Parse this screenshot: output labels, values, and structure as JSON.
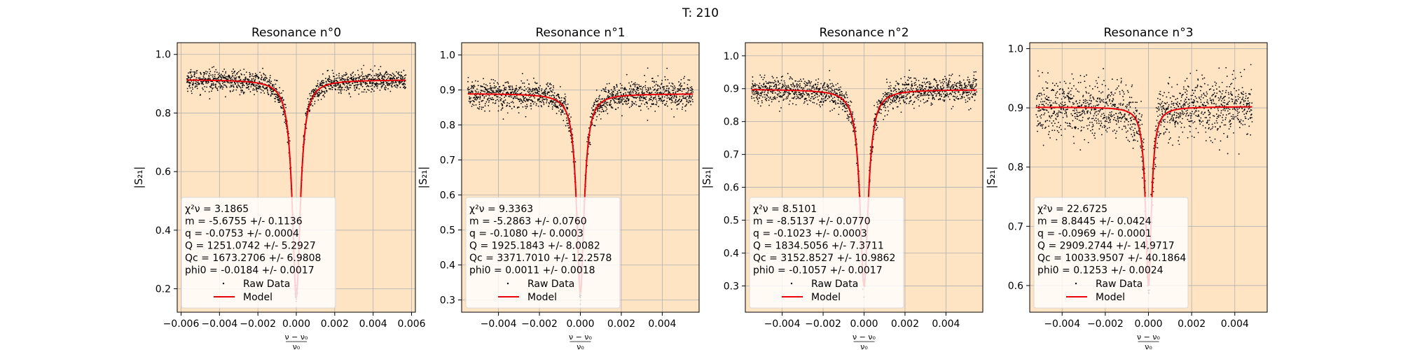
{
  "figure": {
    "title": "T: 210"
  },
  "colors": {
    "panel_bg": "#ffe4c4",
    "raw": "#000000",
    "model": "#e8000b",
    "grid": "#b0b0b0"
  },
  "chart_data": [
    {
      "type": "scatter",
      "title": "Resonance n°0",
      "xlabel_num": "ν − ν₀",
      "xlabel_den": "ν₀",
      "ylabel": "|S₂₁|",
      "xlim": [
        -0.0062,
        0.0062
      ],
      "ylim": [
        0.12,
        1.04
      ],
      "xticks": [
        -0.006,
        -0.004,
        -0.002,
        0.0,
        0.002,
        0.004,
        0.006
      ],
      "xticklabels": [
        "−0.006",
        "−0.004",
        "−0.002",
        "0.000",
        "0.002",
        "0.004",
        "0.006"
      ],
      "yticks": [
        0.2,
        0.4,
        0.6,
        0.8,
        1.0
      ],
      "yticklabels": [
        "0.2",
        "0.4",
        "0.6",
        "0.8",
        "1.0"
      ],
      "grid": true,
      "legend_position": "lower-left",
      "model": {
        "base": 0.9135,
        "slope": -5.6755,
        "min": 0.17,
        "width": 0.00025
      },
      "model_x_range": [
        -0.0057,
        0.0057
      ],
      "noise": 0.018,
      "stats": [
        "χ²ν = 3.1865",
        "m = -5.6755 +/- 0.1136",
        "q = -0.0753 +/- 0.0004",
        "Q = 1251.0742 +/- 5.2927",
        "Qc = 1673.2706 +/- 6.9808",
        "phi0 = -0.0184 +/- 0.0017"
      ],
      "series": [
        {
          "name": "Raw Data"
        },
        {
          "name": "Model"
        }
      ]
    },
    {
      "type": "scatter",
      "title": "Resonance n°1",
      "xlabel_num": "ν − ν₀",
      "xlabel_den": "ν₀",
      "ylabel": "|S₂₁|",
      "xlim": [
        -0.0058,
        0.0058
      ],
      "ylim": [
        0.265,
        1.035
      ],
      "xticks": [
        -0.004,
        -0.002,
        0.0,
        0.002,
        0.004
      ],
      "xticklabels": [
        "−0.004",
        "−0.002",
        "0.000",
        "0.002",
        "0.004"
      ],
      "yticks": [
        0.3,
        0.4,
        0.5,
        0.6,
        0.7,
        0.8,
        0.9,
        1.0
      ],
      "yticklabels": [
        "0.3",
        "0.4",
        "0.5",
        "0.6",
        "0.7",
        "0.8",
        "0.9",
        "1.0"
      ],
      "grid": true,
      "legend_position": "lower-left",
      "model": {
        "base": 0.8893,
        "slope": -5.2863,
        "min": 0.32,
        "width": 0.00022
      },
      "model_x_range": [
        -0.0055,
        0.0055
      ],
      "noise": 0.02,
      "stats": [
        "χ²ν = 9.3363",
        "m = -5.2863 +/- 0.0760",
        "q = -0.1080 +/- 0.0003",
        "Q = 1925.1843 +/- 8.0082",
        "Qc = 3371.7010 +/- 12.2578",
        "phi0 = 0.0011 +/- 0.0018"
      ],
      "series": [
        {
          "name": "Raw Data"
        },
        {
          "name": "Model"
        }
      ]
    },
    {
      "type": "scatter",
      "title": "Resonance n°2",
      "xlabel_num": "ν − ν₀",
      "xlabel_den": "ν₀",
      "ylabel": "|S₂₁|",
      "xlim": [
        -0.0058,
        0.0058
      ],
      "ylim": [
        0.22,
        1.04
      ],
      "xticks": [
        -0.004,
        -0.002,
        0.0,
        0.002,
        0.004
      ],
      "xticklabels": [
        "−0.004",
        "−0.002",
        "0.000",
        "0.002",
        "0.004"
      ],
      "yticks": [
        0.3,
        0.4,
        0.5,
        0.6,
        0.7,
        0.8,
        0.9,
        1.0
      ],
      "yticklabels": [
        "0.3",
        "0.4",
        "0.5",
        "0.6",
        "0.7",
        "0.8",
        "0.9",
        "1.0"
      ],
      "grid": true,
      "legend_position": "lower-left",
      "model": {
        "base": 0.8975,
        "slope": -8.5137,
        "min": 0.3,
        "width": 0.00024
      },
      "model_x_range": [
        -0.0055,
        0.0055
      ],
      "noise": 0.02,
      "stats": [
        "χ²ν = 8.5101",
        "m = -8.5137 +/- 0.0770",
        "q = -0.1023 +/- 0.0003",
        "Q = 1834.5056 +/- 7.3711",
        "Qc = 3152.8527 +/- 10.9862",
        "phi0 = -0.1057 +/- 0.0017"
      ],
      "series": [
        {
          "name": "Raw Data"
        },
        {
          "name": "Model"
        }
      ]
    },
    {
      "type": "scatter",
      "title": "Resonance n°3",
      "xlabel_num": "ν − ν₀",
      "xlabel_den": "ν₀",
      "ylabel": "|S₂₁|",
      "xlim": [
        -0.0055,
        0.0055
      ],
      "ylim": [
        0.555,
        1.01
      ],
      "xticks": [
        -0.004,
        -0.002,
        0.0,
        0.002,
        0.004
      ],
      "xticklabels": [
        "−0.004",
        "−0.002",
        "0.000",
        "0.002",
        "0.004"
      ],
      "yticks": [
        0.6,
        0.7,
        0.8,
        0.9,
        1.0
      ],
      "yticklabels": [
        "0.6",
        "0.7",
        "0.8",
        "0.9",
        "1.0"
      ],
      "grid": true,
      "legend_position": "lower-left",
      "model": {
        "base": 0.9016,
        "slope": 8.8445,
        "min": 0.6,
        "width": 0.00016
      },
      "model_x_range": [
        -0.0052,
        0.0048
      ],
      "noise": 0.025,
      "stats": [
        "χ²ν = 22.6725",
        "m = 8.8445 +/- 0.0424",
        "q = -0.0969 +/- 0.0001",
        "Q = 2909.2744 +/- 14.9717",
        "Qc = 10033.9507 +/- 40.1864",
        "phi0 = 0.1253 +/- 0.0024"
      ],
      "series": [
        {
          "name": "Raw Data"
        },
        {
          "name": "Model"
        }
      ]
    }
  ]
}
